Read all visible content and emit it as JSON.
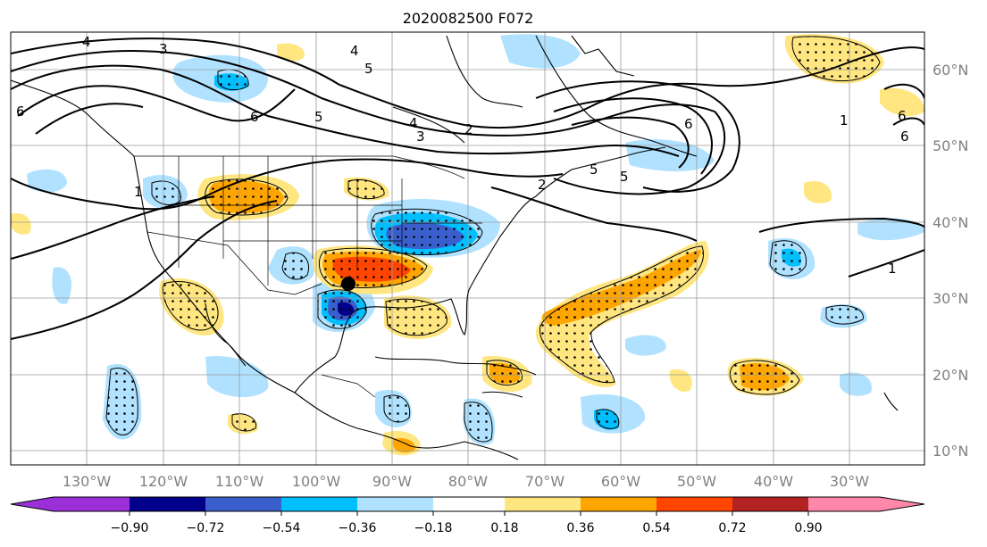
{
  "title": "2020082500 F072",
  "map": {
    "lon_labels": [
      "130°W",
      "120°W",
      "110°W",
      "100°W",
      "90°W",
      "80°W",
      "70°W",
      "60°W",
      "50°W",
      "40°W",
      "30°W"
    ],
    "lat_labels": [
      "60°N",
      "50°N",
      "40°N",
      "30°N",
      "20°N",
      "10°N"
    ],
    "grid": true,
    "contour_labels": [
      "4",
      "3",
      "4",
      "5",
      "6",
      "5",
      "6",
      "4",
      "3",
      "2",
      "1",
      "6",
      "5",
      "6",
      "1",
      "1",
      "2",
      "6",
      "5"
    ],
    "storm_marker": true
  },
  "colorbar": {
    "ticks": [
      "−0.90",
      "−0.72",
      "−0.54",
      "−0.36",
      "−0.18",
      "0.18",
      "0.36",
      "0.54",
      "0.72",
      "0.90"
    ],
    "colors": [
      "#9b30d9",
      "#00008b",
      "#3a5fcd",
      "#00bfff",
      "#b0e2ff",
      "#ffffff",
      "#ffe680",
      "#ffa500",
      "#ff4500",
      "#b22222",
      "#ff88aa"
    ]
  }
}
